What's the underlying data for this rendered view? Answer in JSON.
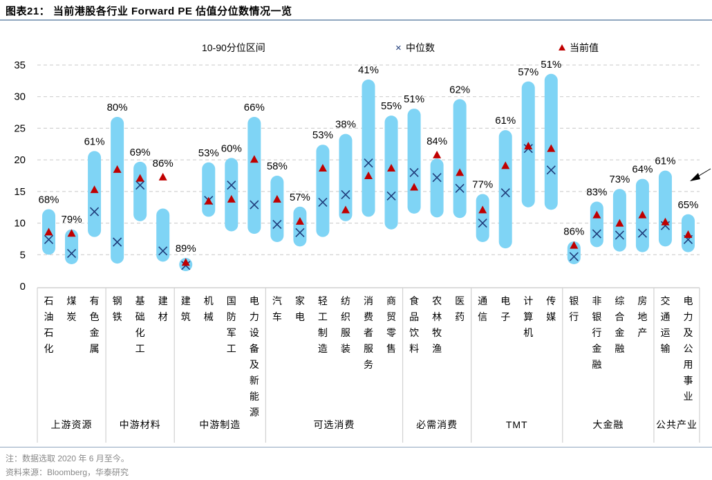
{
  "title": "图表21：  当前港股各行业 Forward PE 估值分位数情况一览",
  "legend": {
    "range_label": "10-90分位区间",
    "median_label": "中位数",
    "current_label": "当前值"
  },
  "notes": {
    "note": "注：数据选取 2020 年 6 月至今。",
    "source": "资料来源：Bloomberg，华泰研究"
  },
  "colors": {
    "range_bar": "#7fd4f5",
    "median_marker": "#1f3c7a",
    "current_marker": "#c00000",
    "grid": "#c8c8c8",
    "rule": "#8fa6bf"
  },
  "chart_data": {
    "type": "range-bar",
    "title": "当前港股各行业 Forward PE 估值分位数情况一览",
    "xlabel": "",
    "ylabel": "Forward PE",
    "ylim": [
      0,
      35
    ],
    "yticks": [
      0,
      5,
      10,
      15,
      20,
      25,
      30,
      35
    ],
    "grid": true,
    "legend_position": "top",
    "categories": [
      "石油石化",
      "煤炭",
      "有色金属",
      "钢铁",
      "基础化工",
      "建材",
      "建筑",
      "机械",
      "国防军工",
      "电力设备及新能源",
      "汽车",
      "家电",
      "轻工制造",
      "纺织服装",
      "消费者服务",
      "商贸零售",
      "食品饮料",
      "农林牧渔",
      "医药",
      "通信",
      "电子",
      "计算机",
      "传媒",
      "银行",
      "非银行金融",
      "综合金融",
      "房地产",
      "交通运输",
      "电力及公用事业"
    ],
    "groups": [
      {
        "name": "上游资源",
        "start": 0,
        "end": 2
      },
      {
        "name": "中游材料",
        "start": 3,
        "end": 5
      },
      {
        "name": "中游制造",
        "start": 6,
        "end": 9
      },
      {
        "name": "可选消费",
        "start": 10,
        "end": 15
      },
      {
        "name": "必需消费",
        "start": 16,
        "end": 18
      },
      {
        "name": "TMT",
        "start": 19,
        "end": 22
      },
      {
        "name": "大金融",
        "start": 23,
        "end": 26
      },
      {
        "name": "公共产业",
        "start": 27,
        "end": 28
      }
    ],
    "series": [
      {
        "name": "10-90分位区间 (p10)",
        "values": [
          5.0,
          3.5,
          7.8,
          3.6,
          10.3,
          3.9,
          2.4,
          11.0,
          8.7,
          8.3,
          7.0,
          6.3,
          7.8,
          10.3,
          11.0,
          9.0,
          11.5,
          10.9,
          10.8,
          7.0,
          6.0,
          12.5,
          12.1,
          3.5,
          6.2,
          5.5,
          5.4,
          6.3,
          5.4
        ]
      },
      {
        "name": "10-90分位区间 (p90)",
        "values": [
          12.2,
          9.0,
          21.4,
          26.8,
          19.7,
          12.3,
          4.5,
          19.6,
          20.3,
          26.8,
          17.5,
          12.6,
          22.4,
          24.1,
          32.7,
          27.0,
          28.1,
          20.2,
          29.6,
          14.6,
          24.7,
          32.4,
          33.6,
          7.1,
          13.4,
          15.4,
          17.0,
          18.3,
          11.4
        ]
      },
      {
        "name": "中位数",
        "values": [
          7.4,
          5.2,
          11.8,
          7.0,
          16.0,
          5.6,
          3.3,
          13.6,
          16.0,
          12.9,
          9.8,
          8.5,
          13.3,
          14.5,
          19.5,
          14.3,
          18.0,
          17.2,
          15.5,
          10.0,
          14.8,
          21.8,
          18.4,
          4.7,
          8.3,
          8.1,
          8.4,
          9.6,
          7.4
        ]
      },
      {
        "name": "当前值",
        "values": [
          8.6,
          8.4,
          15.3,
          18.5,
          17.1,
          17.3,
          3.8,
          13.5,
          13.8,
          20.1,
          13.8,
          10.3,
          18.7,
          12.1,
          17.5,
          18.7,
          15.7,
          20.8,
          18.0,
          12.1,
          19.1,
          22.2,
          21.8,
          6.5,
          11.3,
          10.0,
          11.3,
          10.2,
          8.2
        ]
      },
      {
        "name": "分位数",
        "values": [
          "68%",
          "79%",
          "61%",
          "80%",
          "69%",
          "86%",
          "89%",
          "53%",
          "60%",
          "66%",
          "58%",
          "57%",
          "53%",
          "38%",
          "41%",
          "55%",
          "51%",
          "84%",
          "62%",
          "77%",
          "61%",
          "57%",
          "51%",
          "86%",
          "83%",
          "73%",
          "64%",
          "61%",
          "65%"
        ]
      }
    ]
  }
}
